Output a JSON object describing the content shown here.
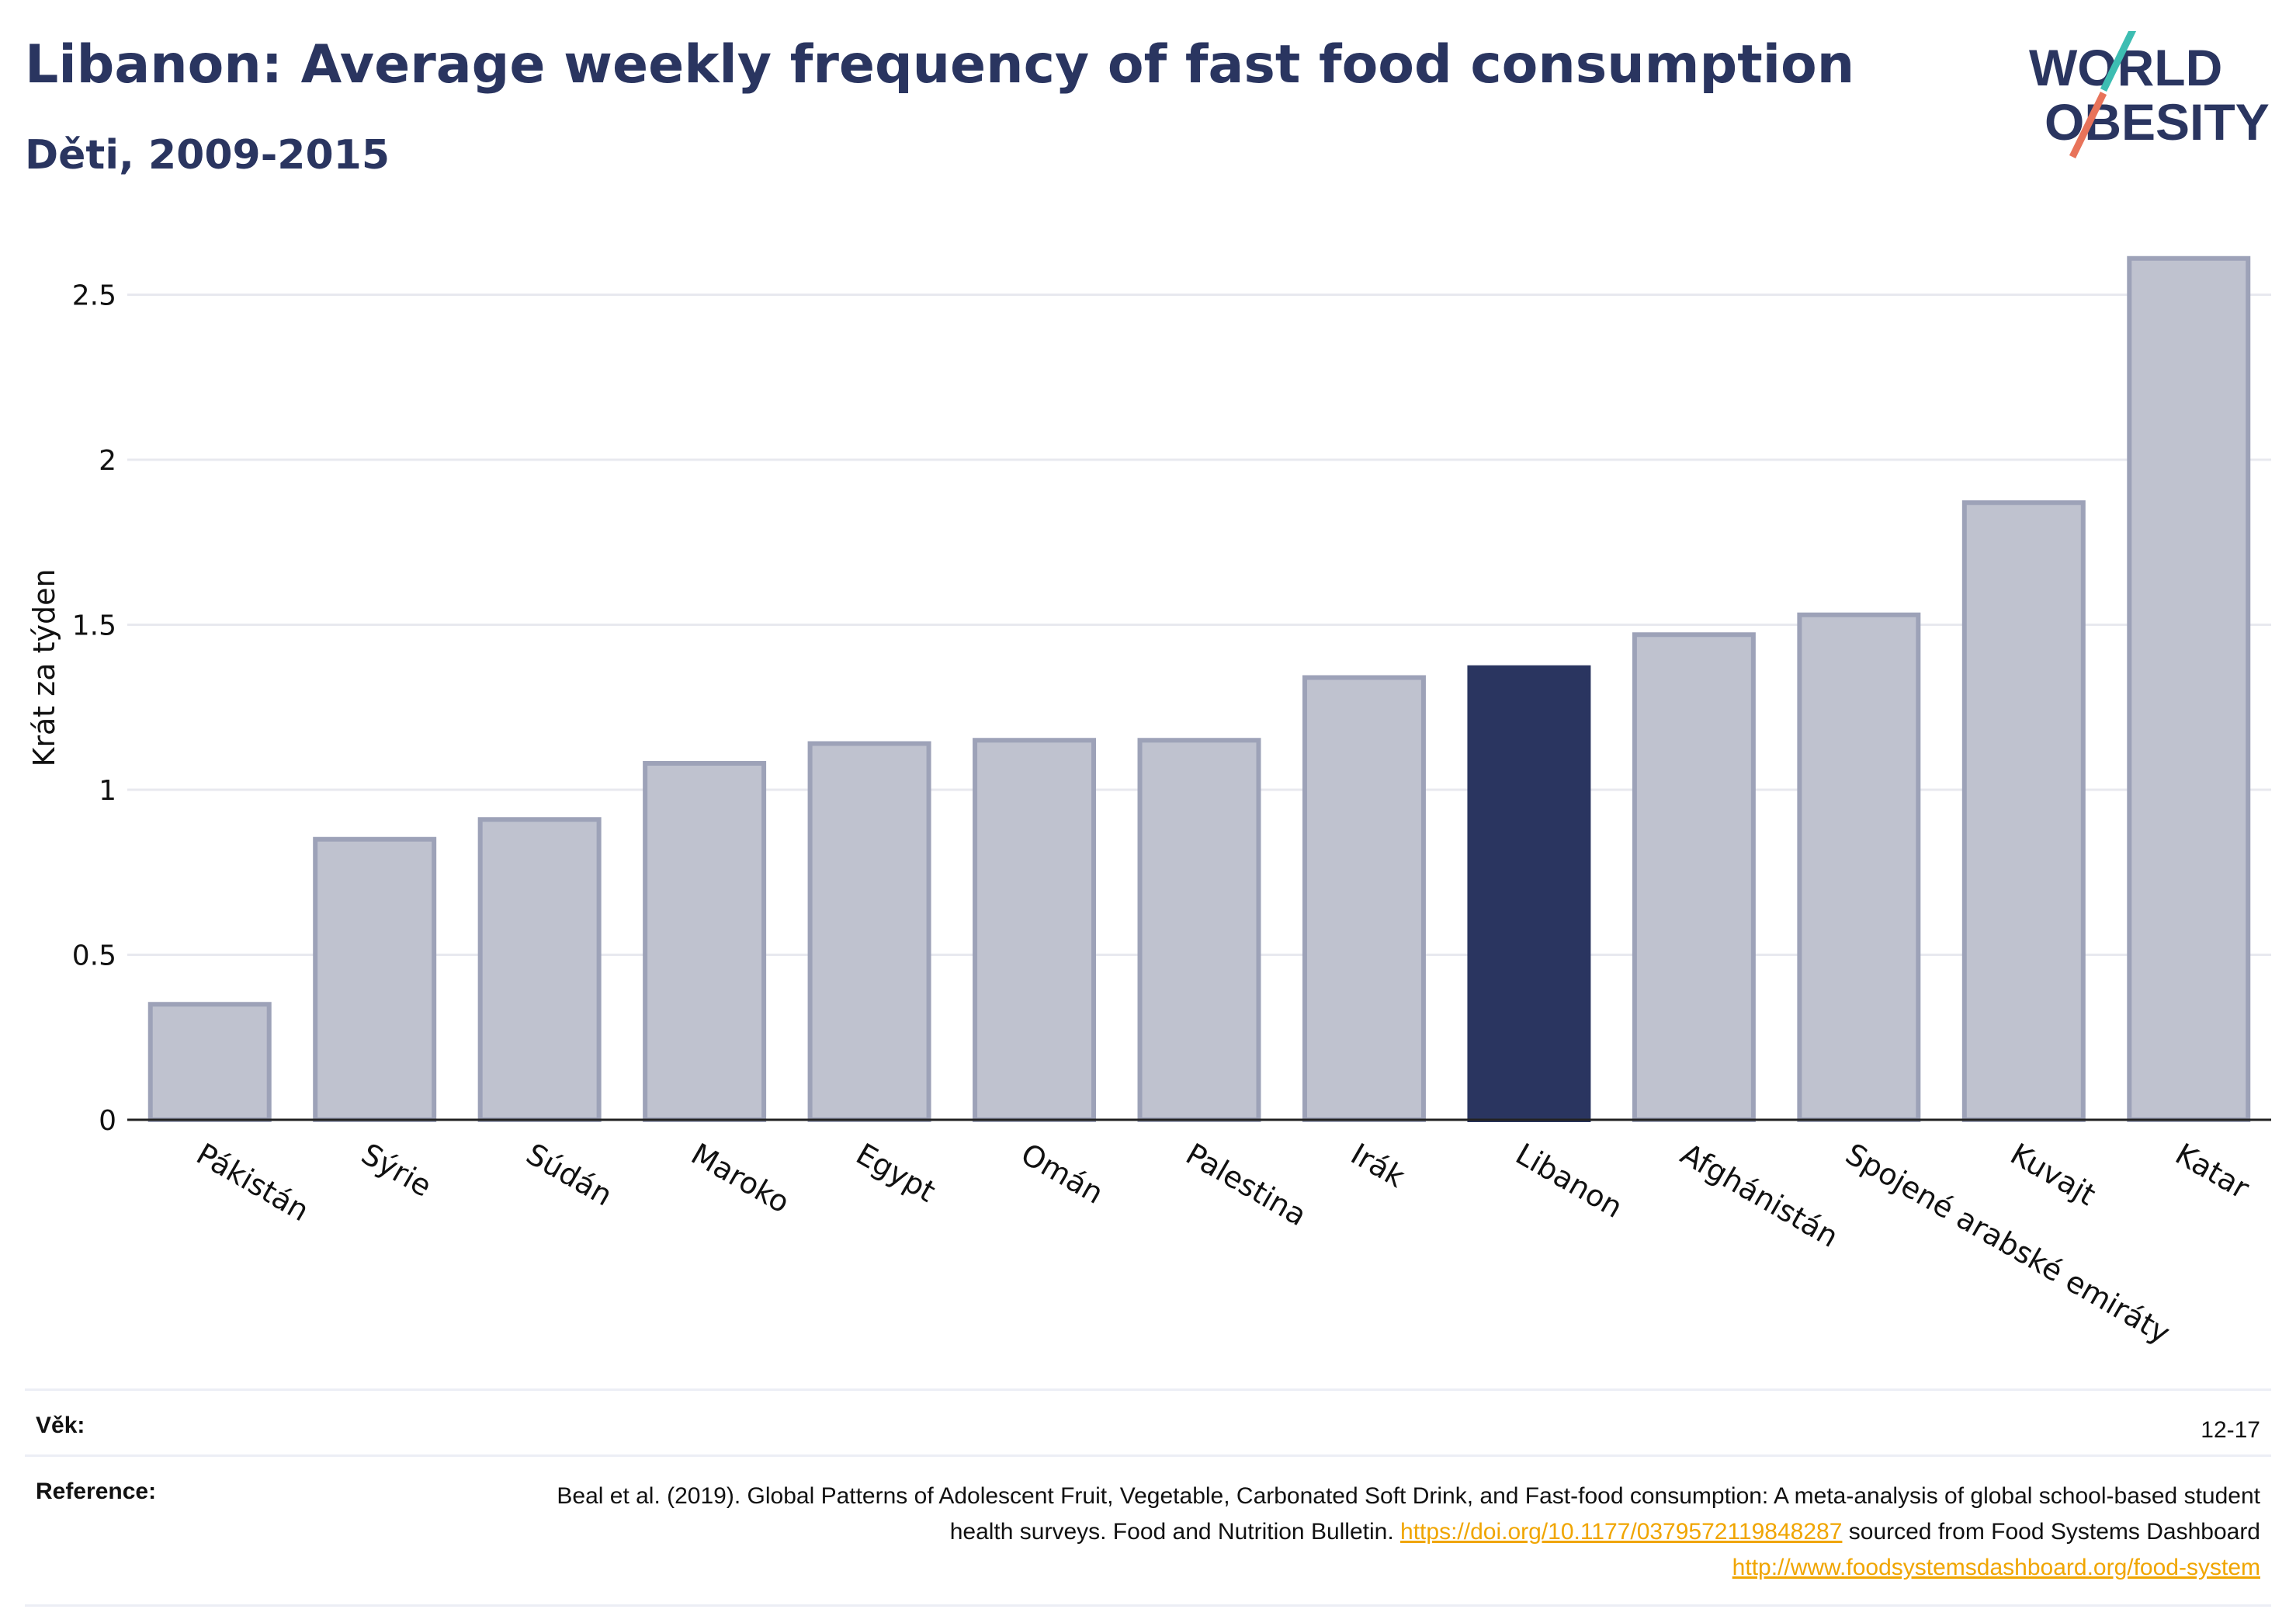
{
  "title": "Libanon: Average weekly frequency of fast food consumption",
  "subtitle": "Děti, 2009-2015",
  "logo": {
    "line1": "WORLD",
    "line2": "OBESITY"
  },
  "colors": {
    "highlight": "#2a3560",
    "bar": "#bfc2cf",
    "bar_border": "#9da2b8",
    "title": "#2a3560",
    "link": "#f0a500"
  },
  "chart_data": {
    "type": "bar",
    "categories": [
      "Pákistán",
      "Sýrie",
      "Súdán",
      "Maroko",
      "Egypt",
      "Omán",
      "Palestina",
      "Irák",
      "Libanon",
      "Afghánistán",
      "Spojené arabské emiráty",
      "Kuvajt",
      "Katar"
    ],
    "values": [
      0.35,
      0.85,
      0.91,
      1.08,
      1.14,
      1.15,
      1.15,
      1.34,
      1.37,
      1.47,
      1.53,
      1.87,
      2.61
    ],
    "highlight": "Libanon",
    "ylabel": "Krát za týden",
    "xlabel": "",
    "ylim": [
      0,
      2.7
    ],
    "yticks": [
      "0",
      "0.5",
      "1",
      "1.5",
      "2",
      "2.5"
    ],
    "ytick_values": [
      0,
      0.5,
      1,
      1.5,
      2,
      2.5
    ],
    "grid": true,
    "legend": "none"
  },
  "info": {
    "age_label": "Věk:",
    "age_value": "12-17",
    "reference_label": "Reference:",
    "reference_text_1": "Beal et al. (2019). Global Patterns of Adolescent Fruit, Vegetable, Carbonated Soft Drink, and Fast-food consumption: A meta-analysis of global school-based student health surveys. Food and Nutrition Bulletin.",
    "reference_link_1": "https://doi.org/10.1177/0379572119848287",
    "reference_text_2": "sourced from Food Systems Dashboard",
    "reference_link_2": "http://www.foodsystemsdashboard.org/food-system"
  }
}
